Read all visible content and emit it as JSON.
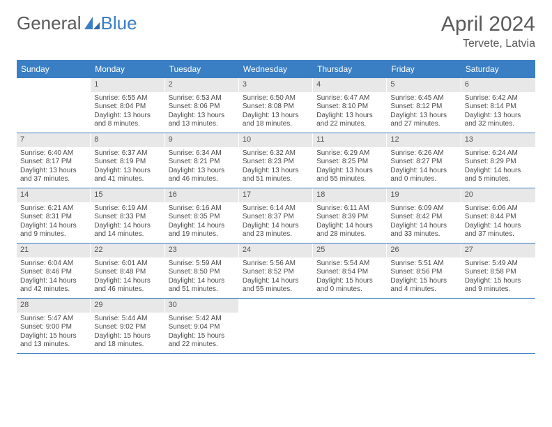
{
  "logo": {
    "part1": "General",
    "part2": "Blue"
  },
  "title": "April 2024",
  "location": "Tervete, Latvia",
  "colors": {
    "accent": "#3a7fc4",
    "header_text": "#ffffff",
    "daynum_bg": "#e8e8e8",
    "text": "#4a4a4a",
    "title_text": "#5a5a5a"
  },
  "weekdays": [
    "Sunday",
    "Monday",
    "Tuesday",
    "Wednesday",
    "Thursday",
    "Friday",
    "Saturday"
  ],
  "weeks": [
    [
      null,
      {
        "n": "1",
        "sr": "Sunrise: 6:55 AM",
        "ss": "Sunset: 8:04 PM",
        "dl": "Daylight: 13 hours and 8 minutes."
      },
      {
        "n": "2",
        "sr": "Sunrise: 6:53 AM",
        "ss": "Sunset: 8:06 PM",
        "dl": "Daylight: 13 hours and 13 minutes."
      },
      {
        "n": "3",
        "sr": "Sunrise: 6:50 AM",
        "ss": "Sunset: 8:08 PM",
        "dl": "Daylight: 13 hours and 18 minutes."
      },
      {
        "n": "4",
        "sr": "Sunrise: 6:47 AM",
        "ss": "Sunset: 8:10 PM",
        "dl": "Daylight: 13 hours and 22 minutes."
      },
      {
        "n": "5",
        "sr": "Sunrise: 6:45 AM",
        "ss": "Sunset: 8:12 PM",
        "dl": "Daylight: 13 hours and 27 minutes."
      },
      {
        "n": "6",
        "sr": "Sunrise: 6:42 AM",
        "ss": "Sunset: 8:14 PM",
        "dl": "Daylight: 13 hours and 32 minutes."
      }
    ],
    [
      {
        "n": "7",
        "sr": "Sunrise: 6:40 AM",
        "ss": "Sunset: 8:17 PM",
        "dl": "Daylight: 13 hours and 37 minutes."
      },
      {
        "n": "8",
        "sr": "Sunrise: 6:37 AM",
        "ss": "Sunset: 8:19 PM",
        "dl": "Daylight: 13 hours and 41 minutes."
      },
      {
        "n": "9",
        "sr": "Sunrise: 6:34 AM",
        "ss": "Sunset: 8:21 PM",
        "dl": "Daylight: 13 hours and 46 minutes."
      },
      {
        "n": "10",
        "sr": "Sunrise: 6:32 AM",
        "ss": "Sunset: 8:23 PM",
        "dl": "Daylight: 13 hours and 51 minutes."
      },
      {
        "n": "11",
        "sr": "Sunrise: 6:29 AM",
        "ss": "Sunset: 8:25 PM",
        "dl": "Daylight: 13 hours and 55 minutes."
      },
      {
        "n": "12",
        "sr": "Sunrise: 6:26 AM",
        "ss": "Sunset: 8:27 PM",
        "dl": "Daylight: 14 hours and 0 minutes."
      },
      {
        "n": "13",
        "sr": "Sunrise: 6:24 AM",
        "ss": "Sunset: 8:29 PM",
        "dl": "Daylight: 14 hours and 5 minutes."
      }
    ],
    [
      {
        "n": "14",
        "sr": "Sunrise: 6:21 AM",
        "ss": "Sunset: 8:31 PM",
        "dl": "Daylight: 14 hours and 9 minutes."
      },
      {
        "n": "15",
        "sr": "Sunrise: 6:19 AM",
        "ss": "Sunset: 8:33 PM",
        "dl": "Daylight: 14 hours and 14 minutes."
      },
      {
        "n": "16",
        "sr": "Sunrise: 6:16 AM",
        "ss": "Sunset: 8:35 PM",
        "dl": "Daylight: 14 hours and 19 minutes."
      },
      {
        "n": "17",
        "sr": "Sunrise: 6:14 AM",
        "ss": "Sunset: 8:37 PM",
        "dl": "Daylight: 14 hours and 23 minutes."
      },
      {
        "n": "18",
        "sr": "Sunrise: 6:11 AM",
        "ss": "Sunset: 8:39 PM",
        "dl": "Daylight: 14 hours and 28 minutes."
      },
      {
        "n": "19",
        "sr": "Sunrise: 6:09 AM",
        "ss": "Sunset: 8:42 PM",
        "dl": "Daylight: 14 hours and 33 minutes."
      },
      {
        "n": "20",
        "sr": "Sunrise: 6:06 AM",
        "ss": "Sunset: 8:44 PM",
        "dl": "Daylight: 14 hours and 37 minutes."
      }
    ],
    [
      {
        "n": "21",
        "sr": "Sunrise: 6:04 AM",
        "ss": "Sunset: 8:46 PM",
        "dl": "Daylight: 14 hours and 42 minutes."
      },
      {
        "n": "22",
        "sr": "Sunrise: 6:01 AM",
        "ss": "Sunset: 8:48 PM",
        "dl": "Daylight: 14 hours and 46 minutes."
      },
      {
        "n": "23",
        "sr": "Sunrise: 5:59 AM",
        "ss": "Sunset: 8:50 PM",
        "dl": "Daylight: 14 hours and 51 minutes."
      },
      {
        "n": "24",
        "sr": "Sunrise: 5:56 AM",
        "ss": "Sunset: 8:52 PM",
        "dl": "Daylight: 14 hours and 55 minutes."
      },
      {
        "n": "25",
        "sr": "Sunrise: 5:54 AM",
        "ss": "Sunset: 8:54 PM",
        "dl": "Daylight: 15 hours and 0 minutes."
      },
      {
        "n": "26",
        "sr": "Sunrise: 5:51 AM",
        "ss": "Sunset: 8:56 PM",
        "dl": "Daylight: 15 hours and 4 minutes."
      },
      {
        "n": "27",
        "sr": "Sunrise: 5:49 AM",
        "ss": "Sunset: 8:58 PM",
        "dl": "Daylight: 15 hours and 9 minutes."
      }
    ],
    [
      {
        "n": "28",
        "sr": "Sunrise: 5:47 AM",
        "ss": "Sunset: 9:00 PM",
        "dl": "Daylight: 15 hours and 13 minutes."
      },
      {
        "n": "29",
        "sr": "Sunrise: 5:44 AM",
        "ss": "Sunset: 9:02 PM",
        "dl": "Daylight: 15 hours and 18 minutes."
      },
      {
        "n": "30",
        "sr": "Sunrise: 5:42 AM",
        "ss": "Sunset: 9:04 PM",
        "dl": "Daylight: 15 hours and 22 minutes."
      },
      null,
      null,
      null,
      null
    ]
  ]
}
